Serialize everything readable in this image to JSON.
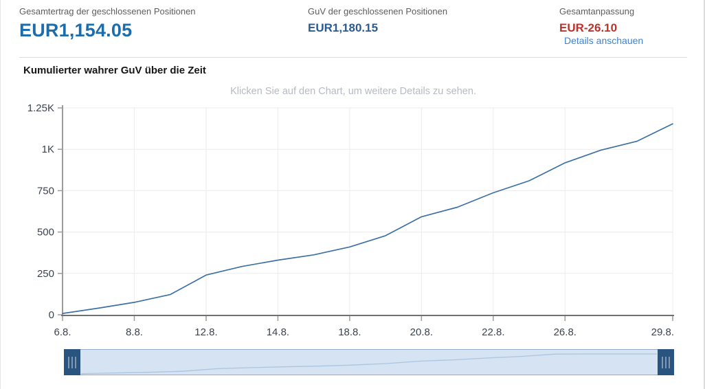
{
  "header": {
    "stats": [
      {
        "label": "Gesamtertrag der geschlossenen Positionen",
        "value": "EUR1,154.05"
      },
      {
        "label": "GuV der geschlossenen Positionen",
        "value": "EUR1,180.15"
      },
      {
        "label": "Gesamtanpassung",
        "value": "EUR-26.10",
        "link": "Details anschauen"
      }
    ]
  },
  "chart": {
    "title": "Kumulierter wahrer GuV über die Zeit",
    "hint": "Klicken Sie auf den Chart, um weitere Details zu sehen."
  },
  "chart_data": {
    "type": "line",
    "title": "Kumulierter wahrer GuV über die Zeit",
    "x": [
      "6.8.",
      "7.8.",
      "8.8.",
      "9.8.",
      "12.8.",
      "13.8.",
      "14.8.",
      "15.8.",
      "18.8.",
      "19.8.",
      "20.8.",
      "21.8.",
      "22.8.",
      "23.8.",
      "26.8.",
      "27.8.",
      "28.8.",
      "29.8."
    ],
    "values": [
      8,
      40,
      75,
      122,
      240,
      292,
      330,
      362,
      410,
      478,
      592,
      650,
      737,
      810,
      918,
      995,
      1048,
      1154
    ],
    "x_tick_indices": [
      0,
      2,
      4,
      6,
      8,
      10,
      12,
      14,
      17
    ],
    "y_tick_labels": [
      "0",
      "250",
      "500",
      "750",
      "1K",
      "1.25K"
    ],
    "y_tick_values": [
      0,
      250,
      500,
      750,
      1000,
      1250
    ],
    "ylim": [
      0,
      1250
    ],
    "grid": true,
    "legend": "none",
    "xlabel": "",
    "ylabel": ""
  },
  "colors": {
    "value_primary": "#1d6dad",
    "value_secondary": "#2b5a92",
    "value_negative": "#bb322d",
    "link": "#3a82d8",
    "line": "#3c70a4",
    "grid_line": "#ececec",
    "axis_line": "#6f6f6f",
    "axis_secondary": "#9b9b9b",
    "tick_label": "#3a434e",
    "slider_fill": "#d6e3f2",
    "slider_handle": "#2a5480",
    "slider_mini_line": "#a9c5e2"
  }
}
